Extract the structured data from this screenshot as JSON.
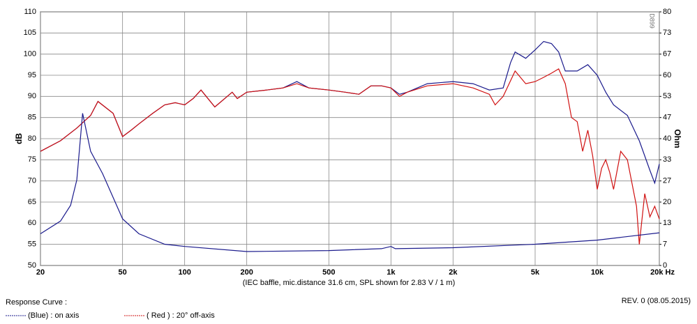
{
  "chart_data": {
    "type": "line",
    "note_caption": "(IEC baffle, mic.distance 31.6 cm, SPL shown for 2.83 V / 1 m)",
    "ylabel": "dB",
    "y2label": "Ohm",
    "mark_code": "D899",
    "legend_title": "Response Curve :",
    "revision": "REV. 0 (08.05.2015)",
    "xscale": "log",
    "grid": true,
    "xlim": [
      20,
      20000
    ],
    "xticks": [
      20,
      50,
      100,
      200,
      500,
      {
        "value": 1000,
        "label": "1k"
      },
      {
        "value": 2000,
        "label": "2k"
      },
      {
        "value": 5000,
        "label": "5k"
      },
      {
        "value": 10000,
        "label": "10k"
      },
      {
        "value": 20000,
        "label": "20k Hz"
      }
    ],
    "ylim": [
      50,
      110
    ],
    "yticks": [
      50,
      55,
      60,
      65,
      70,
      75,
      80,
      85,
      90,
      95,
      100,
      105,
      110
    ],
    "y2lim": [
      0,
      80
    ],
    "y2ticks": [
      0,
      {
        "value": 6.667,
        "label": "7"
      },
      {
        "value": 13.333,
        "label": "13"
      },
      20,
      {
        "value": 26.667,
        "label": "27"
      },
      {
        "value": 33.333,
        "label": "33"
      },
      40,
      {
        "value": 46.667,
        "label": "47"
      },
      {
        "value": 53.333,
        "label": "53"
      },
      60,
      {
        "value": 66.667,
        "label": "67"
      },
      {
        "value": 73.333,
        "label": "73"
      },
      80
    ],
    "series": [
      {
        "name": "(Blue) : on axis",
        "color": "#1a1a8c",
        "x": [
          20,
          25,
          30,
          35,
          38,
          45,
          50,
          55,
          60,
          70,
          80,
          90,
          100,
          110,
          120,
          140,
          170,
          180,
          200,
          250,
          300,
          350,
          400,
          500,
          600,
          700,
          800,
          900,
          1000,
          1100,
          1200,
          1500,
          2000,
          2500,
          3000,
          3500,
          3800,
          4000,
          4500,
          5000,
          5500,
          6000,
          6500,
          7000,
          8000,
          9000,
          10000,
          11000,
          12000,
          14000,
          16000,
          18000,
          19000,
          20000
        ],
        "values": [
          77,
          79.5,
          82.5,
          85.5,
          88.8,
          86,
          80.5,
          82,
          83.5,
          86,
          88,
          88.5,
          88,
          89.5,
          91.5,
          87.5,
          91,
          89.5,
          91,
          91.5,
          92,
          93.5,
          92,
          91.5,
          91,
          90.5,
          92.5,
          92.5,
          92,
          90.5,
          91,
          93,
          93.5,
          93,
          91.5,
          92,
          98,
          100.5,
          99,
          101,
          103,
          102.5,
          100.5,
          96,
          96,
          97.5,
          95,
          91,
          88,
          85.5,
          79.5,
          72.5,
          69.5,
          74
        ]
      },
      {
        "name": "( Red ) : 20° off-axis",
        "color": "#d01010",
        "x": [
          20,
          25,
          30,
          35,
          38,
          45,
          50,
          55,
          60,
          70,
          80,
          90,
          100,
          110,
          120,
          140,
          170,
          180,
          200,
          250,
          300,
          350,
          400,
          500,
          600,
          700,
          800,
          900,
          1000,
          1100,
          1200,
          1500,
          2000,
          2500,
          3000,
          3200,
          3500,
          4000,
          4500,
          5000,
          5500,
          6000,
          6500,
          7000,
          7500,
          8000,
          8500,
          9000,
          9500,
          10000,
          10500,
          11000,
          11500,
          12000,
          13000,
          14000,
          15500,
          16000,
          17000,
          18000,
          19000,
          20000
        ],
        "values": [
          77,
          79.5,
          82.5,
          85.5,
          88.8,
          86,
          80.5,
          82,
          83.5,
          86,
          88,
          88.5,
          88,
          89.5,
          91.5,
          87.5,
          91,
          89.5,
          91,
          91.5,
          92,
          93,
          92,
          91.5,
          91,
          90.5,
          92.5,
          92.5,
          92,
          90,
          91,
          92.5,
          93,
          92,
          90.5,
          88,
          90,
          96,
          93,
          93.5,
          94.5,
          95.5,
          96.5,
          93,
          85,
          84,
          77,
          82,
          76,
          68,
          73,
          75,
          72,
          68,
          77,
          75,
          64,
          55,
          67,
          61.5,
          64,
          61
        ]
      },
      {
        "color": "#1a1a8c",
        "axis": "y2",
        "x": [
          20,
          25,
          28,
          30,
          32,
          35,
          40,
          50,
          60,
          80,
          100,
          200,
          500,
          900,
          1000,
          1050,
          2000,
          5000,
          10000,
          20000
        ],
        "values": [
          10,
          14,
          19,
          27,
          48,
          36,
          29,
          14.7,
          10,
          6.7,
          6,
          4.4,
          4.7,
          5.3,
          6,
          5.3,
          5.6,
          6.7,
          8,
          10.3
        ]
      }
    ]
  }
}
